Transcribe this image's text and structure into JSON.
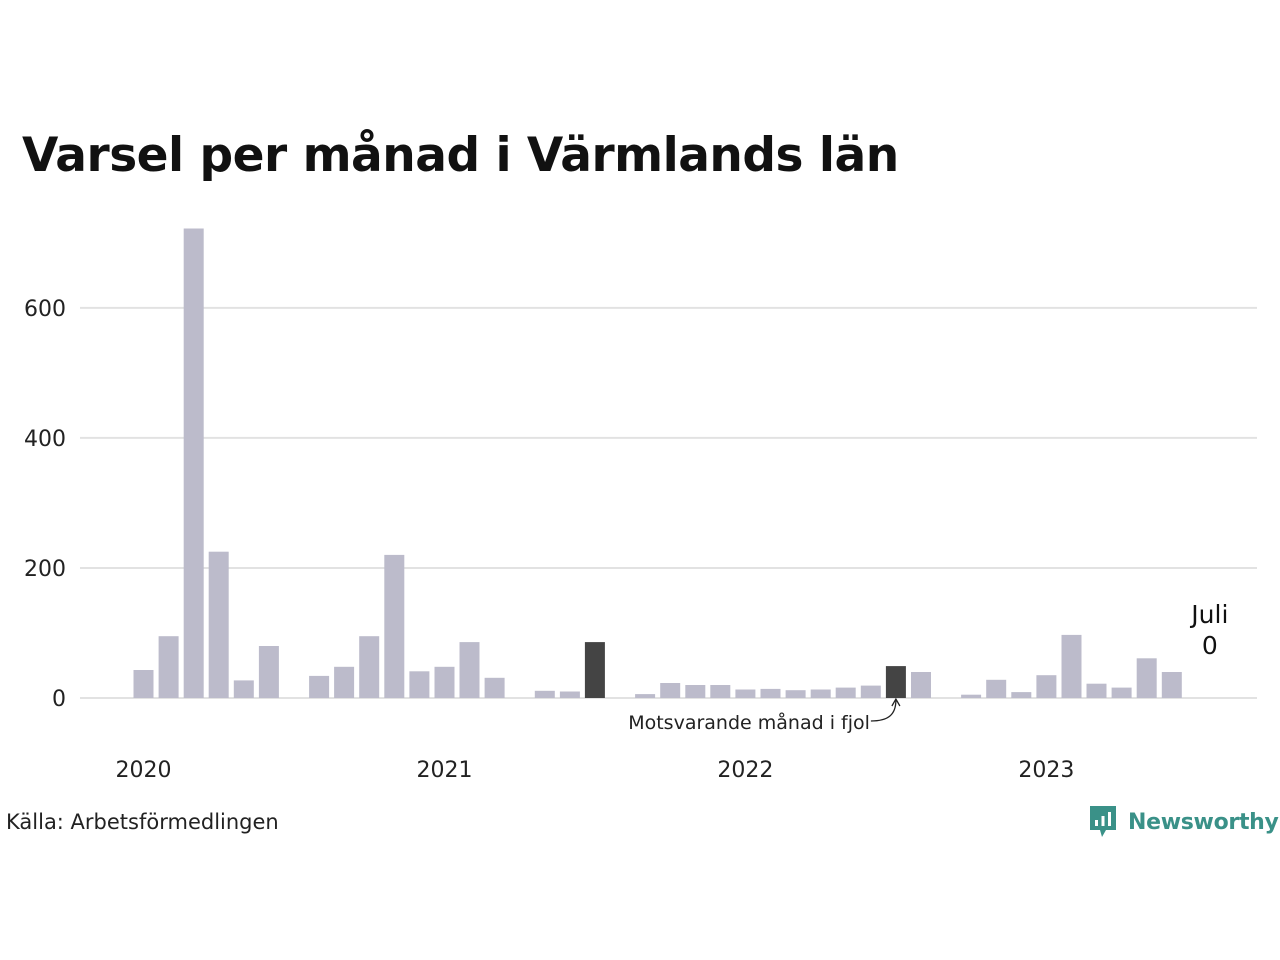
{
  "title": "Varsel per månad i Värmlands län",
  "source": "Källa: Arbetsförmedlingen",
  "brand": {
    "name": "Newsworthy",
    "icon": "newsworthy-logo-icon",
    "color": "#3a9188"
  },
  "annotation": "Motsvarande månad i fjol",
  "callout": {
    "month": "Juli",
    "value": "0"
  },
  "colors": {
    "bar": "#bcbbcb",
    "highlight": "#444444",
    "grid": "#e2e2e2"
  },
  "chart_data": {
    "type": "bar",
    "title": "Varsel per månad i Värmlands län",
    "xlabel": "",
    "ylabel": "",
    "ylim": [
      0,
      740
    ],
    "grid": true,
    "yticks": [
      0,
      200,
      400,
      600
    ],
    "xtick_labels": [
      "2020",
      "2021",
      "2022",
      "2023"
    ],
    "categories": [
      "2020-01",
      "2020-02",
      "2020-03",
      "2020-04",
      "2020-05",
      "2020-06",
      "2020-07",
      "2020-08",
      "2020-09",
      "2020-10",
      "2020-11",
      "2020-12",
      "2021-01",
      "2021-02",
      "2021-03",
      "2021-04",
      "2021-05",
      "2021-06",
      "2021-07",
      "2021-08",
      "2021-09",
      "2021-10",
      "2021-11",
      "2021-12",
      "2022-01",
      "2022-02",
      "2022-03",
      "2022-04",
      "2022-05",
      "2022-06",
      "2022-07",
      "2022-08",
      "2022-09",
      "2022-10",
      "2022-11",
      "2022-12",
      "2023-01",
      "2023-02",
      "2023-03",
      "2023-04",
      "2023-05",
      "2023-06",
      "2023-07"
    ],
    "values": [
      43,
      95,
      722,
      225,
      27,
      80,
      0,
      34,
      48,
      95,
      220,
      41,
      48,
      86,
      31,
      0,
      11,
      10,
      86,
      0,
      6,
      23,
      20,
      20,
      13,
      14,
      12,
      13,
      16,
      19,
      49,
      40,
      0,
      5,
      28,
      9,
      35,
      97,
      22,
      16,
      61,
      40,
      0
    ],
    "highlighted": [
      "2021-07",
      "2022-07"
    ]
  }
}
